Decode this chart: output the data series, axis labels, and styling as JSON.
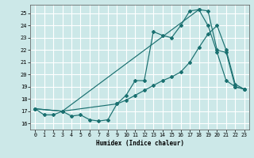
{
  "xlabel": "Humidex (Indice chaleur)",
  "bg_color": "#cce8e8",
  "grid_color": "#ffffff",
  "line_color": "#1a7070",
  "xlim": [
    -0.5,
    23.5
  ],
  "ylim": [
    15.5,
    25.7
  ],
  "xticks": [
    0,
    1,
    2,
    3,
    4,
    5,
    6,
    7,
    8,
    9,
    10,
    11,
    12,
    13,
    14,
    15,
    16,
    17,
    18,
    19,
    20,
    21,
    22,
    23
  ],
  "yticks": [
    16,
    17,
    18,
    19,
    20,
    21,
    22,
    23,
    24,
    25
  ],
  "line1_x": [
    0,
    1,
    2,
    3,
    4,
    5,
    6,
    7,
    8,
    9,
    10,
    11,
    12,
    13,
    14,
    15,
    16,
    17,
    18,
    19,
    20,
    21,
    22,
    23
  ],
  "line1_y": [
    17.2,
    16.7,
    16.7,
    17.0,
    16.6,
    16.7,
    16.3,
    16.2,
    16.3,
    17.6,
    18.3,
    19.5,
    19.5,
    23.5,
    23.2,
    23.0,
    24.0,
    25.2,
    25.3,
    24.0,
    21.8,
    19.5,
    19.0,
    18.8
  ],
  "line2_x": [
    0,
    3,
    18,
    19,
    20,
    21,
    22,
    23
  ],
  "line2_y": [
    17.2,
    17.0,
    25.3,
    25.2,
    22.0,
    21.8,
    19.0,
    18.8
  ],
  "line3_x": [
    0,
    3,
    9,
    10,
    11,
    12,
    13,
    14,
    15,
    16,
    17,
    18,
    19,
    20,
    21,
    22,
    23
  ],
  "line3_y": [
    17.2,
    17.0,
    17.6,
    17.9,
    18.3,
    18.7,
    19.1,
    19.5,
    19.8,
    20.2,
    21.0,
    22.2,
    23.3,
    24.0,
    22.0,
    19.2,
    18.8
  ]
}
